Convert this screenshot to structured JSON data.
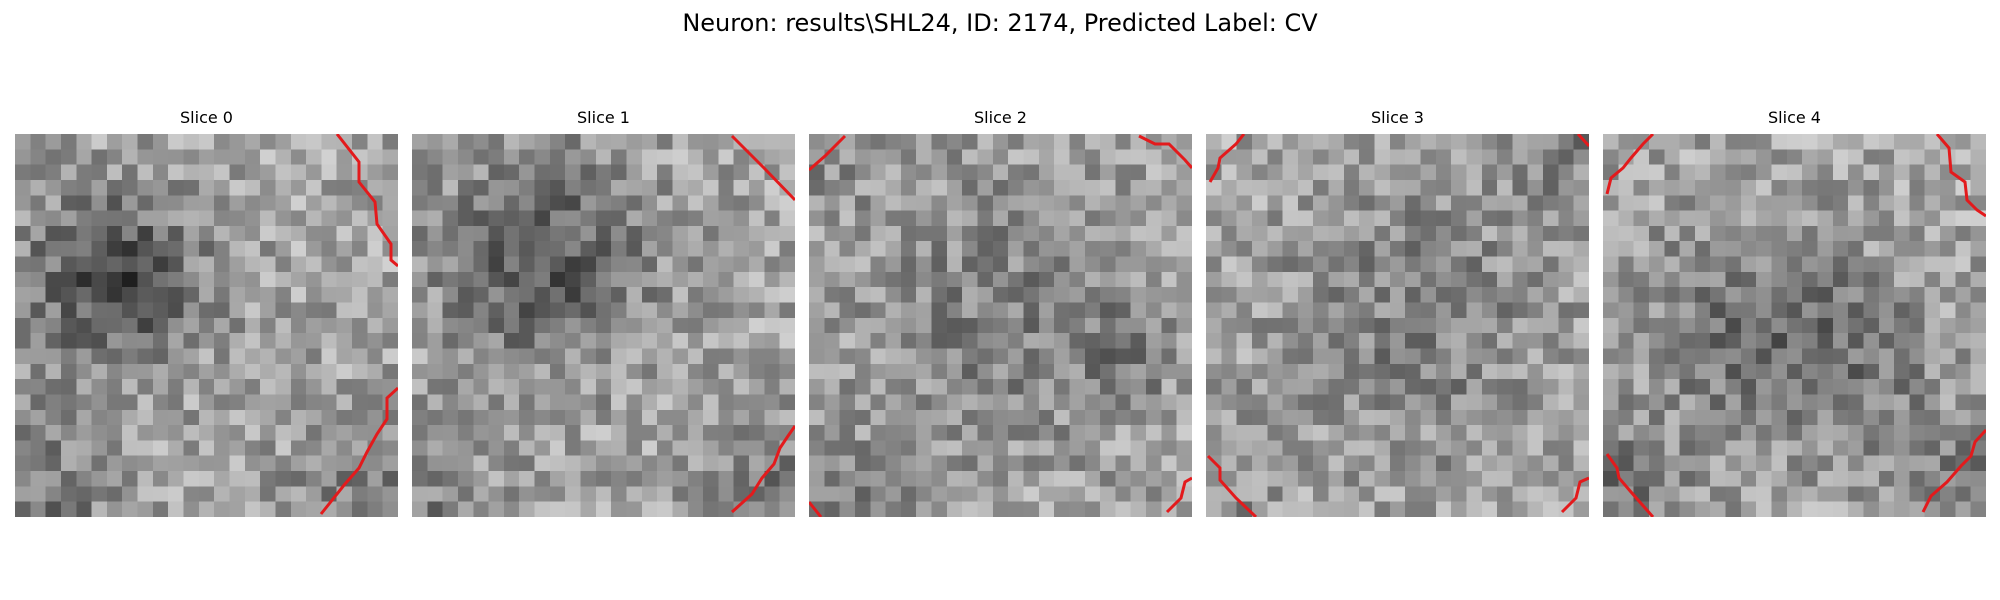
{
  "title": "Neuron: results\\SHL24, ID: 2174, Predicted Label: CV",
  "contour_color": "#e31a1c",
  "colormap": "grayscale",
  "grid_size": 25,
  "slices": [
    {
      "label": "Slice 0"
    },
    {
      "label": "Slice 1"
    },
    {
      "label": "Slice 2"
    },
    {
      "label": "Slice 3"
    },
    {
      "label": "Slice 4"
    }
  ]
}
